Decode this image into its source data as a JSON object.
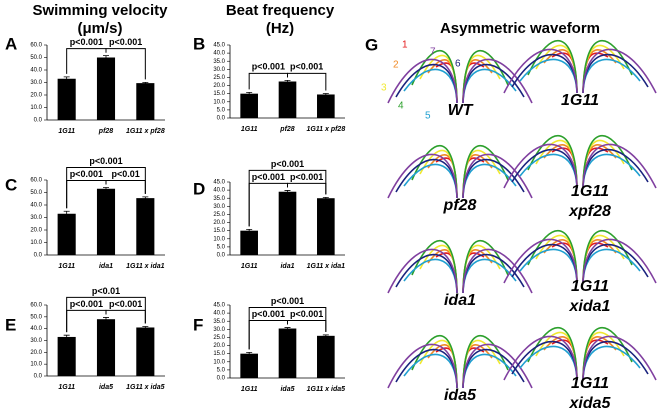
{
  "columns": [
    {
      "title": "Swimming velocity",
      "unit": "(μm/s)"
    },
    {
      "title": "Beat frequency",
      "unit": "(Hz)"
    },
    {
      "title": "Asymmetric waveform"
    }
  ],
  "chart_data": [
    {
      "type": "bar",
      "panel": "A",
      "categories": [
        "1G11",
        "pf28",
        "1G11 x pf28"
      ],
      "values": [
        33,
        50,
        29.5
      ],
      "errors": [
        1.5,
        1.5,
        0.6
      ],
      "color": "#000000",
      "ylim": [
        0,
        60
      ],
      "yticks": [
        {
          "value": 0,
          "label": "0.0"
        },
        {
          "value": 10,
          "label": "10.0"
        },
        {
          "value": 20,
          "label": "20.0"
        },
        {
          "value": 30,
          "label": "30.0"
        },
        {
          "value": 40,
          "label": "40.0"
        },
        {
          "value": 50,
          "label": "50.0"
        },
        {
          "value": 60,
          "label": "60.0"
        }
      ],
      "annotations": [
        {
          "text": "p<0.001",
          "between": [
            "1G11",
            "pf28"
          ]
        },
        {
          "text": "p<0.001",
          "between": [
            "pf28",
            "1G11 x pf28"
          ]
        }
      ]
    },
    {
      "type": "bar",
      "panel": "B",
      "categories": [
        "1G11",
        "pf28",
        "1G11 x pf28"
      ],
      "values": [
        15,
        22.5,
        14.5
      ],
      "errors": [
        0.8,
        0.7,
        0.6
      ],
      "color": "#000000",
      "ylim": [
        0,
        45
      ],
      "yticks": [
        {
          "value": 0,
          "label": "0.0"
        },
        {
          "value": 5,
          "label": "5.0"
        },
        {
          "value": 10,
          "label": "10.0"
        },
        {
          "value": 15,
          "label": "15.0"
        },
        {
          "value": 20,
          "label": "20.0"
        },
        {
          "value": 25,
          "label": "25.0"
        },
        {
          "value": 30,
          "label": "30.0"
        },
        {
          "value": 35,
          "label": "35.0"
        },
        {
          "value": 40,
          "label": "40.0"
        },
        {
          "value": 45,
          "label": "45.0"
        }
      ],
      "annotations": [
        {
          "text": "p<0.001",
          "between": [
            "1G11",
            "pf28"
          ]
        },
        {
          "text": "p<0.001",
          "between": [
            "pf28",
            "1G11 x pf28"
          ]
        }
      ]
    },
    {
      "type": "bar",
      "panel": "C",
      "categories": [
        "1G11",
        "ida1",
        "1G11 x ida1"
      ],
      "values": [
        33,
        53,
        45.5
      ],
      "errors": [
        2,
        1,
        1
      ],
      "color": "#000000",
      "ylim": [
        0,
        60
      ],
      "yticks": [
        {
          "value": 0,
          "label": "0.0"
        },
        {
          "value": 10,
          "label": "10.0"
        },
        {
          "value": 20,
          "label": "20.0"
        },
        {
          "value": 30,
          "label": "30.0"
        },
        {
          "value": 40,
          "label": "40.0"
        },
        {
          "value": 50,
          "label": "50.0"
        },
        {
          "value": 60,
          "label": "60.0"
        }
      ],
      "annotations": [
        {
          "text": "p<0.001",
          "between": [
            "1G11",
            "1G11 x ida1"
          ]
        },
        {
          "text": "p<0.001",
          "between": [
            "1G11",
            "ida1"
          ]
        },
        {
          "text": "p<0.01",
          "between": [
            "ida1",
            "1G11 x ida1"
          ]
        }
      ]
    },
    {
      "type": "bar",
      "panel": "D",
      "categories": [
        "1G11",
        "ida1",
        "1G11 x ida1"
      ],
      "values": [
        15,
        39,
        35
      ],
      "errors": [
        0.8,
        0.8,
        0.5
      ],
      "color": "#000000",
      "ylim": [
        0,
        45
      ],
      "yticks": [
        {
          "value": 0,
          "label": "0.0"
        },
        {
          "value": 5,
          "label": "5.0"
        },
        {
          "value": 10,
          "label": "10.0"
        },
        {
          "value": 15,
          "label": "15.0"
        },
        {
          "value": 20,
          "label": "20.0"
        },
        {
          "value": 25,
          "label": "25.0"
        },
        {
          "value": 30,
          "label": "30.0"
        },
        {
          "value": 35,
          "label": "35.0"
        },
        {
          "value": 40,
          "label": "40.0"
        },
        {
          "value": 45,
          "label": "45.0"
        }
      ],
      "annotations": [
        {
          "text": "p<0.001",
          "between": [
            "1G11",
            "1G11 x ida1"
          ]
        },
        {
          "text": "p<0.001",
          "between": [
            "1G11",
            "ida1"
          ]
        },
        {
          "text": "p<0.001",
          "between": [
            "ida1",
            "1G11 x ida1"
          ]
        }
      ]
    },
    {
      "type": "bar",
      "panel": "E",
      "categories": [
        "1G11",
        "ida5",
        "1G11 x ida5"
      ],
      "values": [
        33,
        48,
        41
      ],
      "errors": [
        1.5,
        1.5,
        0.8
      ],
      "color": "#000000",
      "ylim": [
        0,
        60
      ],
      "yticks": [
        {
          "value": 0,
          "label": "0.0"
        },
        {
          "value": 10,
          "label": "10.0"
        },
        {
          "value": 20,
          "label": "20.0"
        },
        {
          "value": 30,
          "label": "30.0"
        },
        {
          "value": 40,
          "label": "40.0"
        },
        {
          "value": 50,
          "label": "50.0"
        },
        {
          "value": 60,
          "label": "60.0"
        }
      ],
      "annotations": [
        {
          "text": "p<0.01",
          "between": [
            "1G11",
            "1G11 x ida5"
          ]
        },
        {
          "text": "p<0.001",
          "between": [
            "1G11",
            "ida5"
          ]
        },
        {
          "text": "p<0.001",
          "between": [
            "ida5",
            "1G11 x ida5"
          ]
        }
      ]
    },
    {
      "type": "bar",
      "panel": "F",
      "categories": [
        "1G11",
        "ida5",
        "1G11 x ida5"
      ],
      "values": [
        15,
        30.5,
        26
      ],
      "errors": [
        0.8,
        0.6,
        0.6
      ],
      "color": "#000000",
      "ylim": [
        0,
        45
      ],
      "yticks": [
        {
          "value": 0,
          "label": "0.0"
        },
        {
          "value": 5,
          "label": "5.0"
        },
        {
          "value": 10,
          "label": "10.0"
        },
        {
          "value": 15,
          "label": "15.0"
        },
        {
          "value": 20,
          "label": "20.0"
        },
        {
          "value": 25,
          "label": "25.0"
        },
        {
          "value": 30,
          "label": "30.0"
        },
        {
          "value": 35,
          "label": "35.0"
        },
        {
          "value": 40,
          "label": "40.0"
        },
        {
          "value": 45,
          "label": "45.0"
        }
      ],
      "annotations": [
        {
          "text": "p<0.001",
          "between": [
            "1G11",
            "1G11 x ida5"
          ]
        },
        {
          "text": "p<0.001",
          "between": [
            "1G11",
            "ida5"
          ]
        },
        {
          "text": "p<0.001",
          "between": [
            "ida5",
            "1G11 x ida5"
          ]
        }
      ]
    }
  ],
  "waveform": {
    "panel": "G",
    "numbers": [
      "1",
      "2",
      "3",
      "4",
      "5",
      "6",
      "7"
    ],
    "labels": [
      [
        "WT"
      ],
      [
        "1G11"
      ],
      [
        "pf28"
      ],
      [
        "1G11",
        "xpf28"
      ],
      [
        "ida1"
      ],
      [
        "1G11",
        "xida1"
      ],
      [
        "ida5"
      ],
      [
        "1G11",
        "xida5"
      ]
    ]
  }
}
